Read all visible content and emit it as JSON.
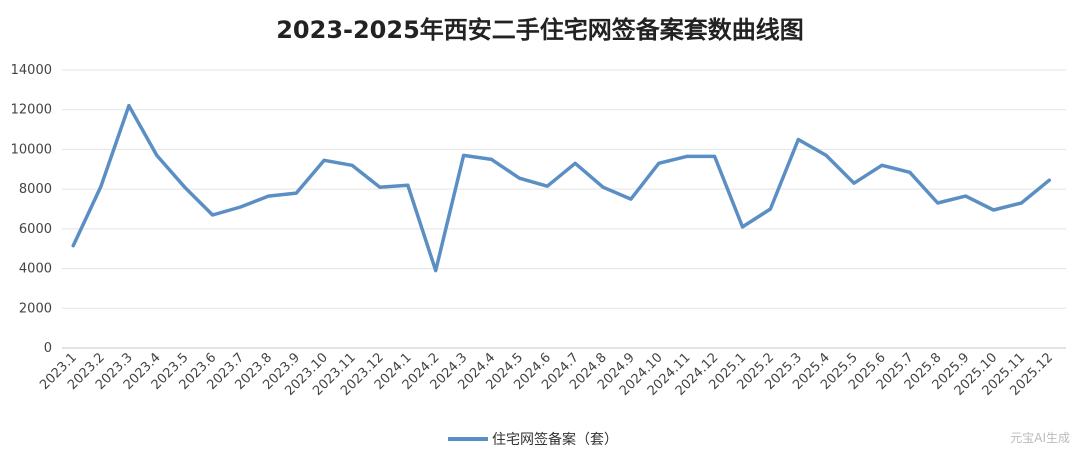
{
  "chart_data": {
    "type": "line",
    "title": "2023-2025年西安二手住宅网签备案套数曲线图",
    "xlabel": "",
    "ylabel": "",
    "ylim": [
      0,
      14000
    ],
    "yticks": [
      "0",
      "2000",
      "4000",
      "6000",
      "8000",
      "10000",
      "12000",
      "14000"
    ],
    "grid": true,
    "legend_position": "bottom",
    "categories": [
      "2023.1",
      "2023.2",
      "2023.3",
      "2023.4",
      "2023.5",
      "2023.6",
      "2023.7",
      "2023.8",
      "2023.9",
      "2023.10",
      "2023.11",
      "2023.12",
      "2024.1",
      "2024.2",
      "2024.3",
      "2024.4",
      "2024.5",
      "2024.6",
      "2024.7",
      "2024.8",
      "2024.9",
      "2024.10",
      "2024.11",
      "2024.12",
      "2025.1",
      "2025.2",
      "2025.3",
      "2025.4",
      "2025.5",
      "2025.6",
      "2025.7",
      "2025.8",
      "2025.9",
      "2025.10",
      "2025.11",
      "2025.12"
    ],
    "series": [
      {
        "name": "住宅网签备案（套）",
        "color": "#5b8fc4",
        "values": [
          5150,
          8150,
          12200,
          9700,
          8100,
          6700,
          7100,
          7650,
          7800,
          9450,
          9200,
          8100,
          8200,
          3900,
          9700,
          9500,
          8550,
          8150,
          9300,
          8100,
          7500,
          9300,
          9650,
          9650,
          6100,
          7000,
          10500,
          9700,
          8300,
          9200,
          8850,
          7300,
          7650,
          6950,
          7300,
          8450
        ]
      }
    ]
  },
  "watermark": "元宝AI生成"
}
